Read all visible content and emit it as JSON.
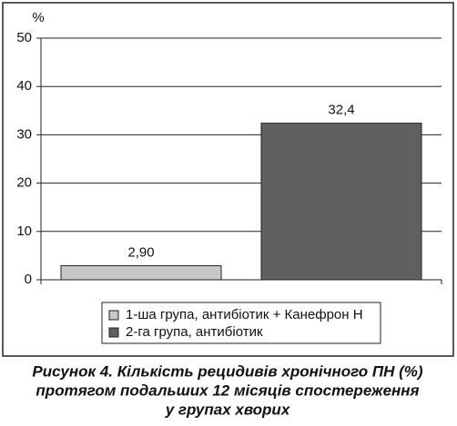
{
  "chart_data": {
    "type": "bar",
    "title": [
      "Рисунок 4. Кількість рецидивів хронічного ПН (%)",
      "протягом подальших 12 місяців спостереження",
      "у групах хворих"
    ],
    "y_label": "%",
    "categories": [
      null
    ],
    "series": [
      {
        "name": "1-ша група, антибіотик + Канефрон Н",
        "color": "#c8c8c8",
        "values": [
          2.9
        ],
        "value_labels": [
          "2,90"
        ]
      },
      {
        "name": "2-га група, антибіотик",
        "color": "#606060",
        "values": [
          32.4
        ],
        "value_labels": [
          "32,4"
        ]
      }
    ],
    "ylim": [
      0,
      50
    ],
    "yticks": [
      0,
      10,
      20,
      30,
      40,
      50
    ],
    "grid": true,
    "legend": "bottom"
  }
}
